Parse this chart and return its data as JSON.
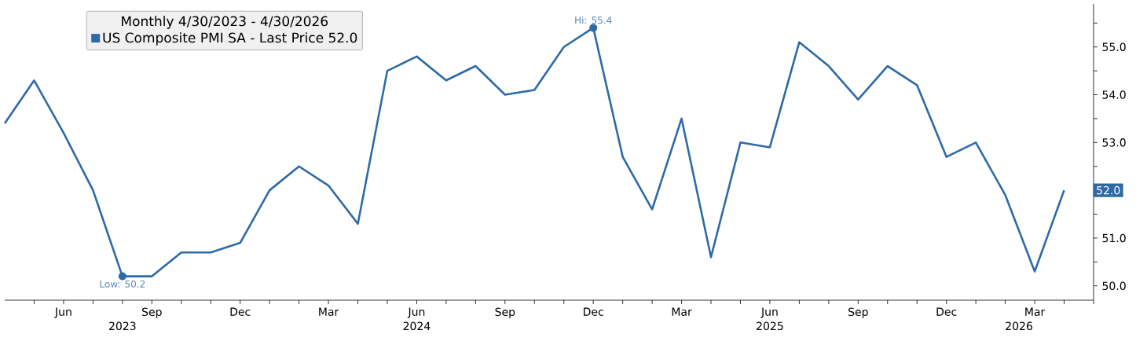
{
  "chart_data": {
    "type": "line",
    "legend_title": "Monthly 4/30/2023 - 4/30/2026",
    "x": [
      "2023-04",
      "2023-05",
      "2023-06",
      "2023-07",
      "2023-08",
      "2023-09",
      "2023-10",
      "2023-11",
      "2023-12",
      "2024-01",
      "2024-02",
      "2024-03",
      "2024-04",
      "2024-05",
      "2024-06",
      "2024-07",
      "2024-08",
      "2024-09",
      "2024-10",
      "2024-11",
      "2024-12",
      "2025-01",
      "2025-02",
      "2025-03",
      "2025-04",
      "2025-05",
      "2025-06",
      "2025-07",
      "2025-08",
      "2025-09",
      "2025-10",
      "2025-11",
      "2025-12",
      "2026-01",
      "2026-02",
      "2026-03",
      "2026-04"
    ],
    "series": [
      {
        "name": "US Composite PMI SA - Last Price 52.0",
        "color": "#2e6aa6",
        "values": [
          53.4,
          54.3,
          53.2,
          52.0,
          50.2,
          50.2,
          50.7,
          50.7,
          50.9,
          52.0,
          52.5,
          52.1,
          51.3,
          54.5,
          54.8,
          54.3,
          54.6,
          54.0,
          54.1,
          55.0,
          55.4,
          52.7,
          51.6,
          53.5,
          50.6,
          53.0,
          52.9,
          55.1,
          54.6,
          53.9,
          54.6,
          54.2,
          52.7,
          53.0,
          51.9,
          50.3,
          52.0
        ]
      }
    ],
    "xlim": [
      "2023-04",
      "2026-05"
    ],
    "xticks": [
      {
        "value": "2023-05",
        "label": null
      },
      {
        "value": "2023-06",
        "label": "Jun"
      },
      {
        "value": "2023-07",
        "label": null
      },
      {
        "value": "2023-08",
        "label": null
      },
      {
        "value": "2023-09",
        "label": "Sep"
      },
      {
        "value": "2023-10",
        "label": null
      },
      {
        "value": "2023-11",
        "label": null
      },
      {
        "value": "2023-12",
        "label": "Dec"
      },
      {
        "value": "2024-01",
        "label": null
      },
      {
        "value": "2024-02",
        "label": null
      },
      {
        "value": "2024-03",
        "label": "Mar"
      },
      {
        "value": "2024-04",
        "label": null
      },
      {
        "value": "2024-05",
        "label": null
      },
      {
        "value": "2024-06",
        "label": "Jun"
      },
      {
        "value": "2024-07",
        "label": null
      },
      {
        "value": "2024-08",
        "label": null
      },
      {
        "value": "2024-09",
        "label": "Sep"
      },
      {
        "value": "2024-10",
        "label": null
      },
      {
        "value": "2024-11",
        "label": null
      },
      {
        "value": "2024-12",
        "label": "Dec"
      },
      {
        "value": "2025-01",
        "label": null
      },
      {
        "value": "2025-02",
        "label": null
      },
      {
        "value": "2025-03",
        "label": "Mar"
      },
      {
        "value": "2025-04",
        "label": null
      },
      {
        "value": "2025-05",
        "label": null
      },
      {
        "value": "2025-06",
        "label": "Jun"
      },
      {
        "value": "2025-07",
        "label": null
      },
      {
        "value": "2025-08",
        "label": null
      },
      {
        "value": "2025-09",
        "label": "Sep"
      },
      {
        "value": "2025-10",
        "label": null
      },
      {
        "value": "2025-11",
        "label": null
      },
      {
        "value": "2025-12",
        "label": "Dec"
      },
      {
        "value": "2026-01",
        "label": null
      },
      {
        "value": "2026-02",
        "label": null
      },
      {
        "value": "2026-03",
        "label": "Mar"
      },
      {
        "value": "2026-04",
        "label": null
      },
      {
        "value": "2026-05",
        "label": null
      }
    ],
    "ylim": [
      49.7,
      55.9
    ],
    "yticks": [
      {
        "value": 50,
        "label": "50.0"
      },
      {
        "value": 50.5,
        "label": null
      },
      {
        "value": 51,
        "label": "51.0"
      },
      {
        "value": 51.5,
        "label": null
      },
      {
        "value": 52,
        "label": null
      },
      {
        "value": 52.5,
        "label": null
      },
      {
        "value": 53,
        "label": "53.0"
      },
      {
        "value": 53.5,
        "label": null
      },
      {
        "value": 54,
        "label": "54.0"
      },
      {
        "value": 54.5,
        "label": null
      },
      {
        "value": 55,
        "label": "55.0"
      },
      {
        "value": 55.5,
        "label": null
      }
    ],
    "annotations": [
      {
        "text": "Low: 50.2",
        "x": "2023-08",
        "y": 50.2
      },
      {
        "text": "Hi: 55.4",
        "x": "2024-12",
        "y": 55.4
      },
      "52.0"
    ],
    "x2lim": [
      "2023-04",
      "2026-05"
    ],
    "x2ticks": [
      {
        "value": "2023-08",
        "label": "2023"
      },
      {
        "value": "2024-06",
        "label": "2024"
      },
      {
        "value": "2025-06",
        "label": "2025"
      },
      {
        "value": "2026-02-15",
        "label": "2026"
      }
    ],
    "legend": "top left",
    "grid": false,
    "marker": "none",
    "line_style": "solid"
  }
}
